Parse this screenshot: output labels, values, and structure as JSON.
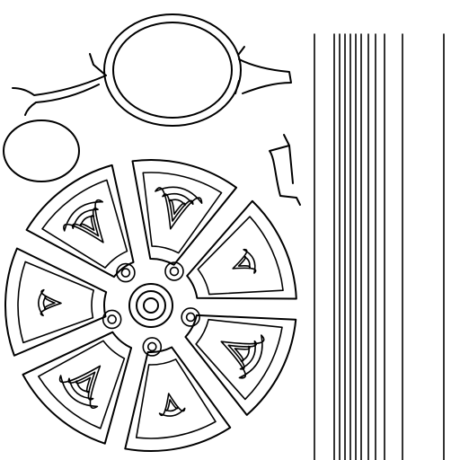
{
  "artwork": {
    "stroke_color": "#000000",
    "background_color": "#ffffff",
    "wheel": {
      "lobes": 7,
      "hub_rings": 3,
      "bolts": 5
    },
    "stripes": {
      "count": 12
    }
  }
}
